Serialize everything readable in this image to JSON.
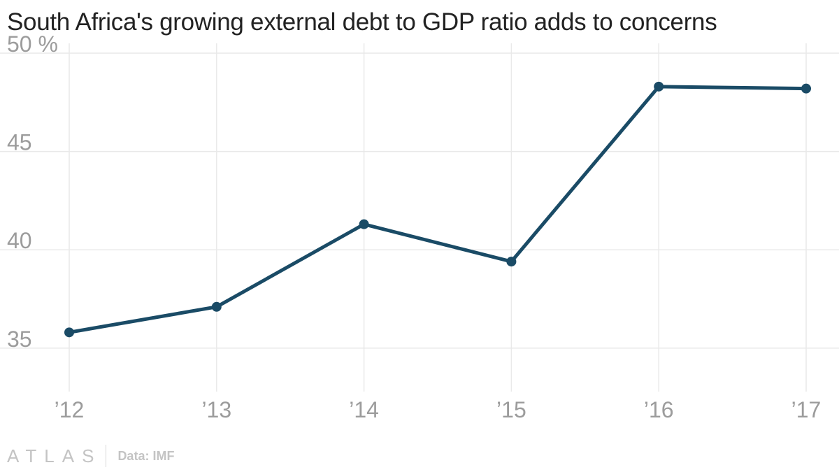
{
  "title": "South Africa's growing external debt to GDP ratio adds to concerns",
  "chart_data": {
    "type": "line",
    "x": [
      "’12",
      "’13",
      "’14",
      "’15",
      "’16",
      "’17"
    ],
    "series": [
      {
        "values": [
          35.8,
          37.1,
          41.3,
          39.4,
          48.3,
          48.2
        ],
        "color": "#1a4b66"
      }
    ],
    "yticks": [
      "35",
      "40",
      "45",
      "50 %"
    ],
    "ylim": [
      33.5,
      50.5
    ],
    "grid": true
  },
  "footer": {
    "logo": "ATLAS",
    "source": "Data: IMF"
  }
}
